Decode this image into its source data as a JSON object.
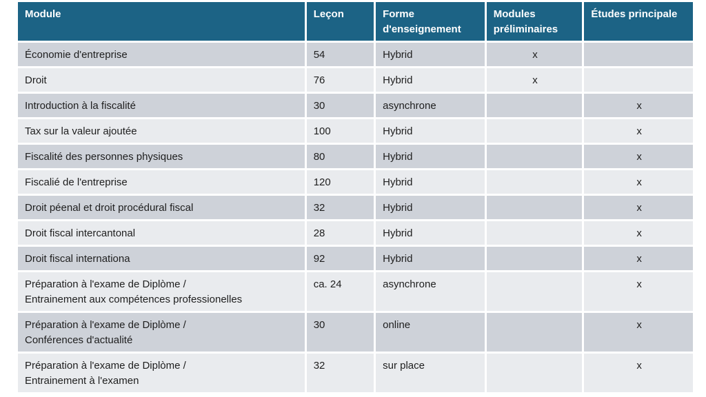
{
  "page": {
    "background_color": "#ffffff"
  },
  "table": {
    "header_bg_color": "#1c6385",
    "header_text_color": "#ffffff",
    "row_odd_bg_color": "#ced2d9",
    "row_even_bg_color": "#e9ebee",
    "body_text_color": "#1e1e1e",
    "columns": {
      "module": "Module",
      "lecon": "Leçon",
      "forme": "Forme d'enseignement",
      "preliminaires": "Modules préliminaires",
      "principale": "Études principale"
    },
    "rows": [
      {
        "module": "Économie d'entreprise",
        "lecon": "54",
        "forme": "Hybrid",
        "preliminaires": "x",
        "principale": ""
      },
      {
        "module": "Droit",
        "lecon": "76",
        "forme": "Hybrid",
        "preliminaires": "x",
        "principale": ""
      },
      {
        "module": "Introduction à la fiscalité",
        "lecon": "30",
        "forme": "asynchrone",
        "preliminaires": "",
        "principale": "x"
      },
      {
        "module": "Tax sur la valeur ajoutée",
        "lecon": "100",
        "forme": "Hybrid",
        "preliminaires": "",
        "principale": "x"
      },
      {
        "module": "Fiscalité des personnes physiques",
        "lecon": "80",
        "forme": "Hybrid",
        "preliminaires": "",
        "principale": "x"
      },
      {
        "module": "Fiscalié de l'entreprise",
        "lecon": "120",
        "forme": "Hybrid",
        "preliminaires": "",
        "principale": "x"
      },
      {
        "module": "Droit péenal et droit procédural fiscal",
        "lecon": "32",
        "forme": "Hybrid",
        "preliminaires": "",
        "principale": "x"
      },
      {
        "module": "Droit fiscal intercantonal",
        "lecon": "28",
        "forme": "Hybrid",
        "preliminaires": "",
        "principale": "x"
      },
      {
        "module": "Droit fiscal internationa",
        "lecon": "92",
        "forme": "Hybrid",
        "preliminaires": "",
        "principale": "x"
      },
      {
        "module": "Préparation à l'exame de Diplòme /\nEntrainement aux compétences professionelles",
        "lecon": "ca. 24",
        "forme": "asynchrone",
        "preliminaires": "",
        "principale": "x"
      },
      {
        "module": "Préparation à l'exame de Diplòme /\nConférences d'actualité",
        "lecon": "30",
        "forme": "online",
        "preliminaires": "",
        "principale": "x"
      },
      {
        "module": "Préparation à l'exame de Diplòme /\nEntrainement à l'examen",
        "lecon": "32",
        "forme": "sur place",
        "preliminaires": "",
        "principale": "x"
      }
    ]
  }
}
